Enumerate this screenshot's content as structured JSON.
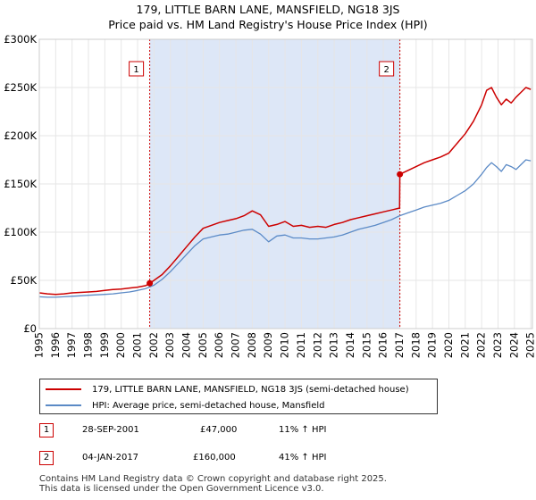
{
  "title": {
    "line1": "179, LITTLE BARN LANE, MANSFIELD, NG18 3JS",
    "line2": "Price paid vs. HM Land Registry's House Price Index (HPI)"
  },
  "colors": {
    "property": "#cc0000",
    "hpi": "#5b8ac6",
    "shade": "#dde7f7",
    "grid": "#e6e6e6",
    "marker": "#cc0000"
  },
  "legend": {
    "property_label": "179, LITTLE BARN LANE, MANSFIELD, NG18 3JS (semi-detached house)",
    "hpi_label": "HPI: Average price, semi-detached house, Mansfield"
  },
  "transactions": [
    {
      "id": "1",
      "date": "28-SEP-2001",
      "price": "£47,000",
      "hpi_diff": "11% ↑ HPI"
    },
    {
      "id": "2",
      "date": "04-JAN-2017",
      "price": "£160,000",
      "hpi_diff": "41% ↑ HPI"
    }
  ],
  "footer": {
    "line1": "Contains HM Land Registry data © Crown copyright and database right 2025.",
    "line2": "This data is licensed under the Open Government Licence v3.0."
  },
  "chart_data": {
    "type": "line",
    "xlim": [
      1995,
      2025.1
    ],
    "ylim": [
      0,
      300000
    ],
    "x_ticks": [
      1995,
      1996,
      1997,
      1998,
      1999,
      2000,
      2001,
      2002,
      2003,
      2004,
      2005,
      2006,
      2007,
      2008,
      2009,
      2010,
      2011,
      2012,
      2013,
      2014,
      2015,
      2016,
      2017,
      2018,
      2019,
      2020,
      2021,
      2022,
      2023,
      2024,
      2025
    ],
    "x_tick_labels": [
      "1995",
      "1996",
      "1997",
      "1998",
      "1999",
      "2000",
      "2001",
      "2002",
      "2003",
      "2004",
      "2005",
      "2006",
      "2007",
      "2008",
      "2009",
      "2010",
      "2011",
      "2012",
      "2013",
      "2014",
      "2015",
      "2016",
      "2017",
      "2018",
      "2019",
      "2020",
      "2021",
      "2022",
      "2023",
      "2024",
      "2025"
    ],
    "y_ticks": [
      0,
      50000,
      100000,
      150000,
      200000,
      250000,
      300000
    ],
    "y_tick_labels": [
      "£0",
      "£50K",
      "£100K",
      "£150K",
      "£200K",
      "£250K",
      "£300K"
    ],
    "shaded_range": [
      2001.74,
      2017.01
    ],
    "sales": [
      {
        "label": "1",
        "x": 2001.74,
        "y": 47000
      },
      {
        "label": "2",
        "x": 2017.01,
        "y": 160000
      }
    ],
    "series": [
      {
        "name": "179, LITTLE BARN LANE, MANSFIELD, NG18 3JS (semi-detached house)",
        "x": [
          1995,
          1995.5,
          1996,
          1996.5,
          1997,
          1997.5,
          1998,
          1998.5,
          1999,
          1999.5,
          2000,
          2000.5,
          2001,
          2001.5,
          2001.74,
          2002,
          2002.5,
          2003,
          2003.5,
          2004,
          2004.5,
          2005,
          2005.5,
          2006,
          2006.5,
          2007,
          2007.5,
          2008,
          2008.5,
          2009,
          2009.5,
          2010,
          2010.5,
          2011,
          2011.5,
          2012,
          2012.5,
          2013,
          2013.5,
          2014,
          2014.5,
          2015,
          2015.5,
          2016,
          2016.5,
          2016.99,
          2017.01,
          2017.5,
          2018,
          2018.5,
          2019,
          2019.5,
          2020,
          2020.5,
          2021,
          2021.5,
          2022,
          2022.3,
          2022.6,
          2022.9,
          2023.2,
          2023.5,
          2023.8,
          2024.1,
          2024.4,
          2024.7,
          2025
        ],
        "y": [
          37000,
          36000,
          35500,
          36000,
          37000,
          37500,
          38000,
          38500,
          39500,
          40500,
          41000,
          42000,
          43000,
          44500,
          47000,
          50000,
          56000,
          65000,
          75000,
          85000,
          95000,
          104000,
          107000,
          110000,
          112000,
          114000,
          117000,
          122000,
          118000,
          106000,
          108000,
          111000,
          106000,
          107000,
          105000,
          106000,
          105000,
          108000,
          110000,
          113000,
          115000,
          117000,
          119000,
          121000,
          123000,
          125000,
          160000,
          164000,
          168000,
          172000,
          175000,
          178000,
          182000,
          192000,
          202000,
          215000,
          232000,
          247000,
          250000,
          240000,
          232000,
          238000,
          234000,
          240000,
          245000,
          250000,
          248000
        ]
      },
      {
        "name": "HPI: Average price, semi-detached house, Mansfield",
        "x": [
          1995,
          1995.5,
          1996,
          1996.5,
          1997,
          1997.5,
          1998,
          1998.5,
          1999,
          1999.5,
          2000,
          2000.5,
          2001,
          2001.5,
          2002,
          2002.5,
          2003,
          2003.5,
          2004,
          2004.5,
          2005,
          2005.5,
          2006,
          2006.5,
          2007,
          2007.5,
          2008,
          2008.5,
          2009,
          2009.5,
          2010,
          2010.5,
          2011,
          2011.5,
          2012,
          2012.5,
          2013,
          2013.5,
          2014,
          2014.5,
          2015,
          2015.5,
          2016,
          2016.5,
          2017,
          2017.5,
          2018,
          2018.5,
          2019,
          2019.5,
          2020,
          2020.5,
          2021,
          2021.5,
          2022,
          2022.3,
          2022.6,
          2022.9,
          2023.2,
          2023.5,
          2023.8,
          2024.1,
          2024.4,
          2024.7,
          2025
        ],
        "y": [
          33000,
          32500,
          32500,
          33000,
          33500,
          34000,
          34500,
          35000,
          35500,
          36000,
          37000,
          38000,
          39500,
          41500,
          45000,
          51000,
          59000,
          68000,
          77000,
          86000,
          93000,
          95000,
          97000,
          98000,
          100000,
          102000,
          103000,
          98000,
          90000,
          96000,
          97000,
          94000,
          94000,
          93000,
          93000,
          94000,
          95000,
          97000,
          100000,
          103000,
          105000,
          107000,
          110000,
          113000,
          117000,
          120000,
          123000,
          126000,
          128000,
          130000,
          133000,
          138000,
          143000,
          150000,
          160000,
          167000,
          172000,
          168000,
          163000,
          170000,
          168000,
          165000,
          170000,
          175000,
          174000
        ]
      }
    ]
  }
}
